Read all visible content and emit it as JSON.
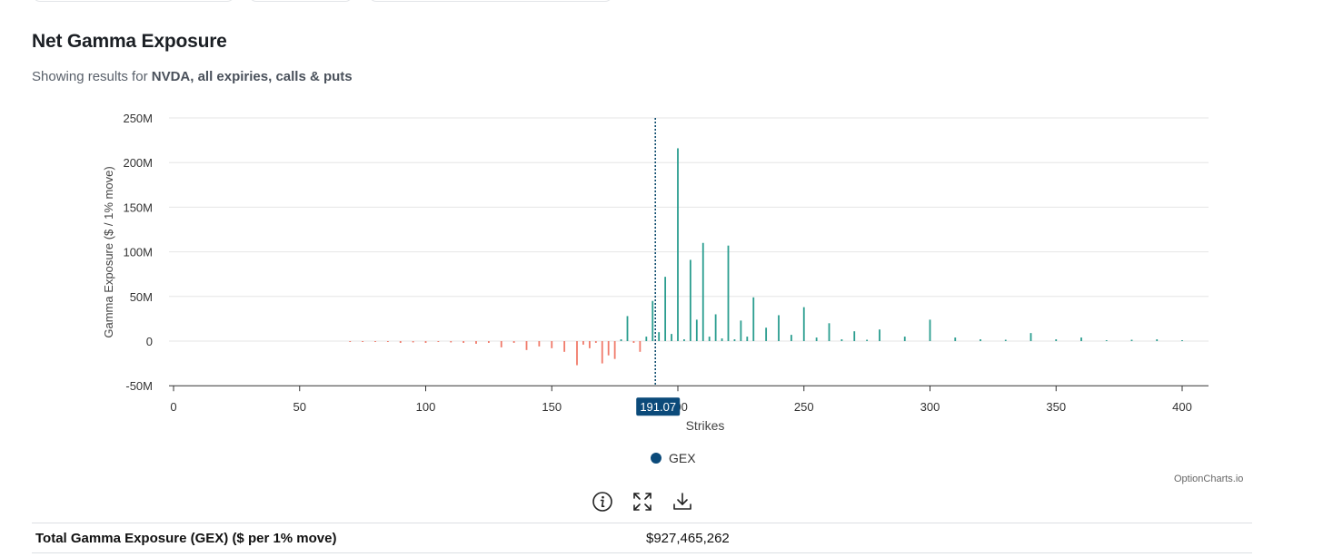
{
  "header": {
    "title": "Net Gamma Exposure",
    "subtitle_prefix": "Showing results for ",
    "subtitle_bold": "NVDA, all expiries, calls & puts"
  },
  "colors": {
    "positive": "#2a9d8f",
    "negative": "#f07a6a",
    "spot_line": "#0d4b6e",
    "spot_label_bg": "#0b4a7a",
    "legend_dot": "#0b4a7a",
    "grid": "#e6e6e6"
  },
  "legend": {
    "label": "GEX"
  },
  "credits": "OptionCharts.io",
  "summary": {
    "label": "Total Gamma Exposure (GEX) ($ per 1% move)",
    "value": "$927,465,262"
  },
  "tools": [
    {
      "name": "info-icon"
    },
    {
      "name": "fullscreen-icon"
    },
    {
      "name": "download-icon"
    }
  ],
  "chart_data": {
    "type": "bar",
    "xlabel": "Strikes",
    "ylabel": "Gamma Exposure ($ / 1% move)",
    "xlim": [
      0,
      410
    ],
    "ylim": [
      -50,
      250
    ],
    "xticks": [
      0,
      50,
      100,
      150,
      200,
      250,
      300,
      350,
      400
    ],
    "yticks": [
      -50,
      0,
      50,
      100,
      150,
      200,
      250
    ],
    "ytick_labels": [
      "-50M",
      "0",
      "50M",
      "100M",
      "150M",
      "200M",
      "250M"
    ],
    "spot": 191.07,
    "spot_label": "191.07",
    "grid": true,
    "legend_position": "bottom",
    "series": [
      {
        "name": "GEX",
        "unit": "M",
        "x": [
          70,
          75,
          80,
          85,
          90,
          95,
          100,
          105,
          110,
          115,
          120,
          125,
          130,
          135,
          140,
          145,
          150,
          155,
          160,
          162.5,
          165,
          167.5,
          170,
          172.5,
          175,
          177.5,
          180,
          182.5,
          185,
          187.5,
          190,
          192.5,
          195,
          197.5,
          200,
          202.5,
          205,
          207.5,
          210,
          212.5,
          215,
          217.5,
          220,
          222.5,
          225,
          227.5,
          230,
          235,
          240,
          245,
          250,
          255,
          260,
          265,
          270,
          275,
          280,
          290,
          300,
          310,
          320,
          330,
          340,
          350,
          360,
          370,
          380,
          390,
          400
        ],
        "values": [
          -0.5,
          -0.8,
          -0.6,
          -1,
          -2,
          -1.5,
          -2,
          -1,
          -1.5,
          -2,
          -3,
          -2,
          -7,
          -2,
          -10,
          -6,
          -8,
          -12,
          -27,
          -4,
          -8,
          -2,
          -25,
          -16,
          -20,
          2,
          28,
          -2,
          -12,
          5,
          45,
          10,
          72,
          8,
          216,
          2,
          91,
          24,
          110,
          5,
          30,
          3,
          107,
          2,
          23,
          5,
          49,
          15,
          29,
          7,
          38,
          4,
          20,
          2,
          11,
          1.5,
          13,
          5,
          24,
          4,
          2,
          1.5,
          9,
          2,
          4,
          1,
          1.5,
          2,
          1
        ]
      }
    ]
  }
}
